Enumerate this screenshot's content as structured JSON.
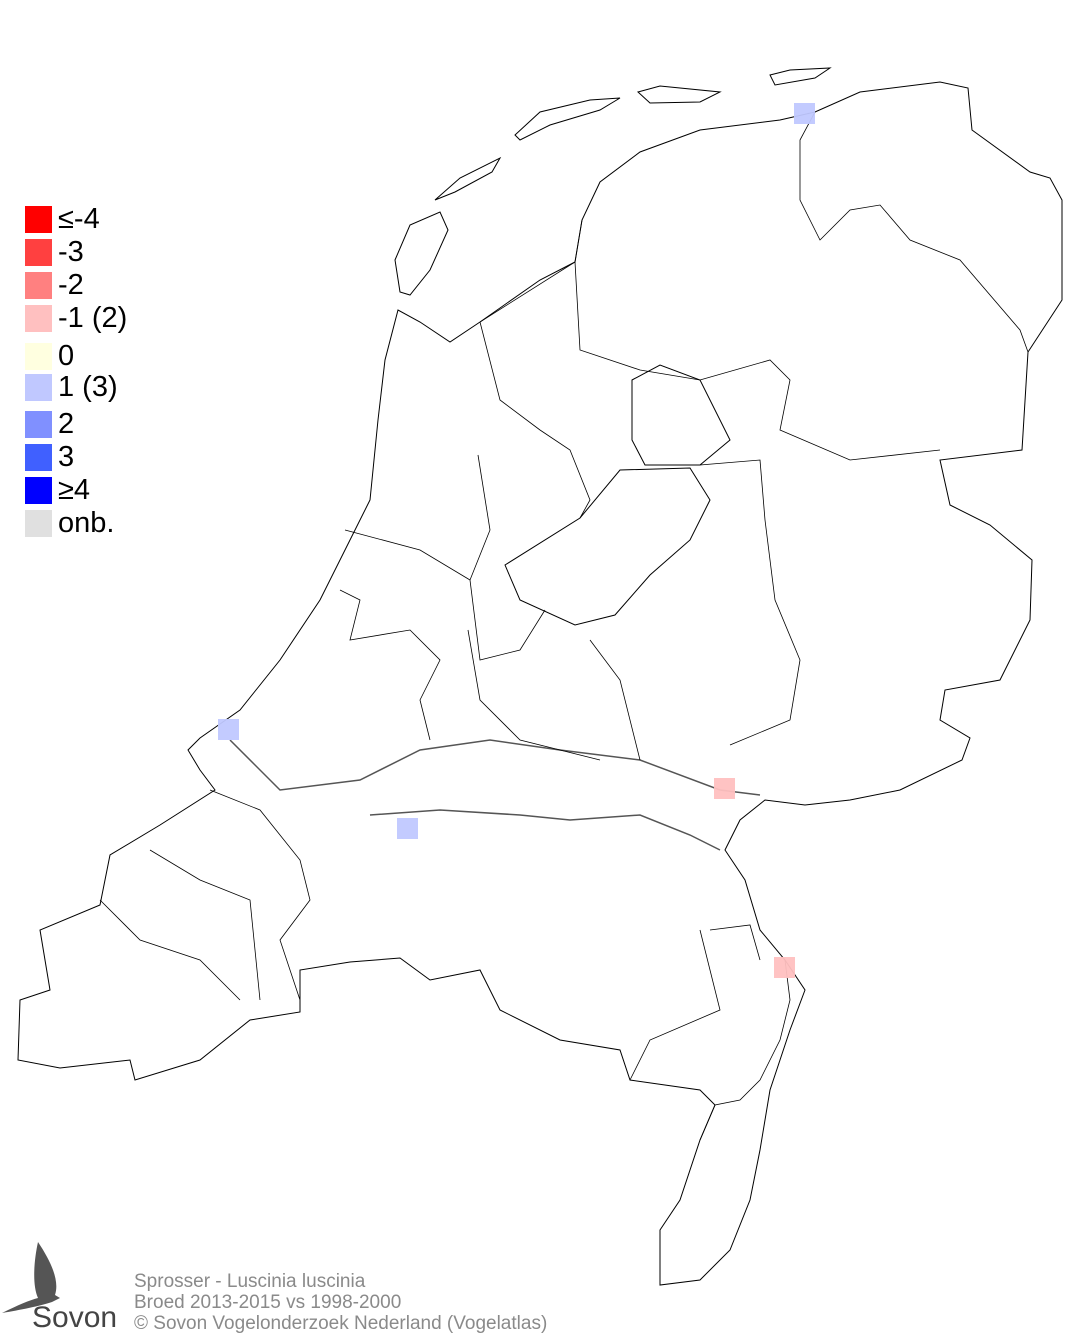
{
  "legend": {
    "items": [
      {
        "label": "≤-4",
        "color": "#ff0000"
      },
      {
        "label": "-3",
        "color": "#ff4040"
      },
      {
        "label": "-2",
        "color": "#ff8080"
      },
      {
        "label": "-1 (2)",
        "color": "#ffc0c0"
      },
      {
        "label": " 0",
        "color": "#ffffe0"
      },
      {
        "label": " 1 (3)",
        "color": "#c0c8ff"
      },
      {
        "label": " 2",
        "color": "#8090ff"
      },
      {
        "label": " 3",
        "color": "#4060ff"
      },
      {
        "label": "≥4",
        "color": "#0000ff"
      },
      {
        "label": "onb.",
        "color": "#e0e0e0"
      }
    ]
  },
  "map": {
    "region": "Netherlands",
    "cells": [
      {
        "category": "1",
        "color": "#c0c8ff",
        "location": "Groningen coast"
      },
      {
        "category": "1",
        "color": "#c0c8ff",
        "location": "Hoek van Holland"
      },
      {
        "category": "1",
        "color": "#c0c8ff",
        "location": "Biesbosch"
      },
      {
        "category": "-1",
        "color": "#ffc0c0",
        "location": "Nijmegen"
      },
      {
        "category": "-1",
        "color": "#ffc0c0",
        "location": "Venlo"
      }
    ]
  },
  "footer": {
    "species": "Sprosser - Luscinia luscinia",
    "period": "Broed 2013-2015 vs 1998-2000",
    "copyright": "© Sovon Vogelonderzoek Nederland (Vogelatlas)"
  },
  "logo": {
    "text": "Sovon"
  }
}
